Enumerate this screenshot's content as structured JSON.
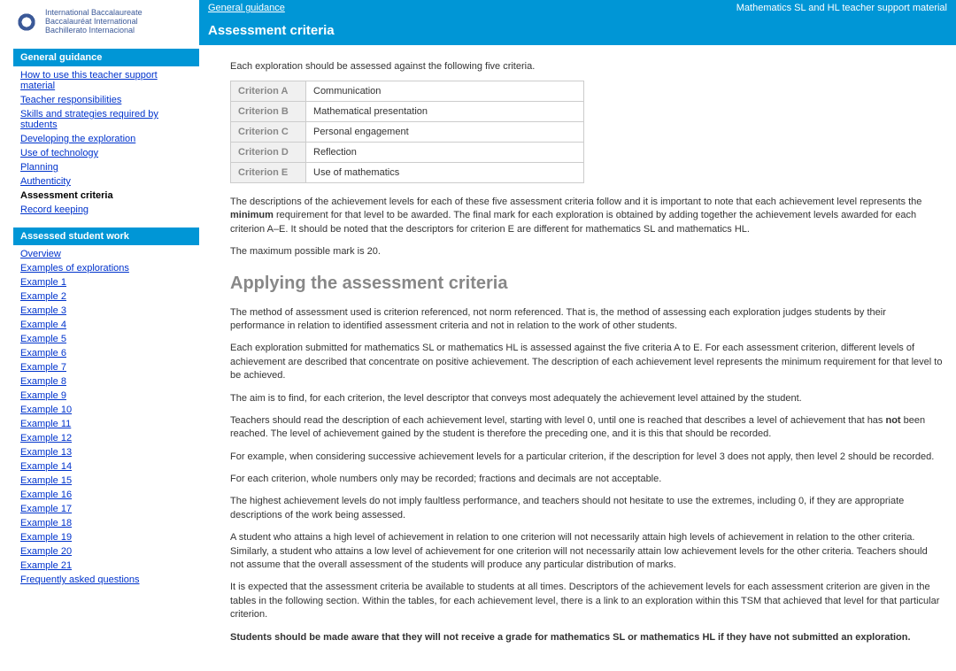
{
  "logo": {
    "line1": "International Baccalaureate",
    "line2": "Baccalauréat International",
    "line3": "Bachillerato Internacional"
  },
  "topbar": {
    "left": "General guidance",
    "right": "Mathematics SL and HL teacher support material"
  },
  "page_title": "Assessment criteria",
  "intro": "Each exploration should be assessed against the following five criteria.",
  "criteria_table": [
    {
      "label": "Criterion A",
      "value": "Communication"
    },
    {
      "label": "Criterion B",
      "value": "Mathematical presentation"
    },
    {
      "label": "Criterion C",
      "value": "Personal engagement"
    },
    {
      "label": "Criterion D",
      "value": "Reflection"
    },
    {
      "label": "Criterion E",
      "value": "Use of mathematics"
    }
  ],
  "desc_para_pre": "The descriptions of the achievement levels for each of these five assessment criteria follow and it is important to note that each achievement level represents the ",
  "desc_para_bold": "minimum",
  "desc_para_post": " requirement for that level to be awarded. The final mark for each exploration is obtained by adding together the achievement levels awarded for each criterion A–E. It should be noted that the descriptors for criterion E are different for mathematics SL and mathematics HL.",
  "max_mark": "The maximum possible mark is 20.",
  "section_heading": "Applying the assessment criteria",
  "p1": "The method of assessment used is criterion referenced, not norm referenced. That is, the method of assessing each exploration judges students by their performance in relation to identified assessment criteria and not in relation to the work of other students.",
  "p2": "Each exploration submitted for mathematics SL or mathematics HL is assessed against the five criteria A to E. For each assessment criterion, different levels of achievement are described that concentrate on positive achievement. The description of each achievement level represents the minimum requirement for that level to be achieved.",
  "p3": "The aim is to find, for each criterion, the level descriptor that conveys most adequately the achievement level attained by the student.",
  "p4_pre": "Teachers should read the description of each achievement level, starting with level 0, until one is reached that describes a level of achievement that has ",
  "p4_bold": "not",
  "p4_post": " been reached. The level of achievement gained by the student is therefore the preceding one, and it is this that should be recorded.",
  "p5": "For example, when considering successive achievement levels for a particular criterion, if the description for level 3 does not apply, then level 2 should be recorded.",
  "p6": "For each criterion, whole numbers only may be recorded; fractions and decimals are not acceptable.",
  "p7": "The highest achievement levels do not imply faultless performance, and teachers should not hesitate to use the extremes, including 0, if they are appropriate descriptions of the work being assessed.",
  "p8": "A student who attains a high level of achievement in relation to one criterion will not necessarily attain high levels of achievement in relation to the other criteria. Similarly, a student who attains a low level of achievement for one criterion will not necessarily attain low achievement levels for the other criteria. Teachers should not assume that the overall assessment of the students will produce any particular distribution of marks.",
  "p9": "It is expected that the assessment criteria be available to students at all times. Descriptors of the achievement levels for each assessment criterion are given in the tables in the following section. Within the tables, for each achievement level, there is a link to an exploration within this TSM that achieved that level for that particular criterion.",
  "p10": "Students should be made aware that they will not receive a grade for mathematics SL or mathematics HL if they have not submitted an exploration.",
  "nav": {
    "section1": {
      "header": "General guidance",
      "items": [
        "How to use this teacher support material",
        "Teacher responsibilities",
        "Skills and strategies required by students",
        "Developing the exploration",
        "Use of technology",
        "Planning",
        "Authenticity",
        "Assessment criteria",
        "Record keeping"
      ],
      "active_index": 7
    },
    "section2": {
      "header": "Assessed student work",
      "items": [
        "Overview",
        "Examples of explorations",
        "Example 1",
        "Example 2",
        "Example 3",
        "Example 4",
        "Example 5",
        "Example 6",
        "Example 7",
        "Example 8",
        "Example 9",
        "Example 10",
        "Example 11",
        "Example 12",
        "Example 13",
        "Example 14",
        "Example 15",
        "Example 16",
        "Example 17",
        "Example 18",
        "Example 19",
        "Example 20",
        "Example 21",
        "Frequently asked questions"
      ]
    }
  }
}
